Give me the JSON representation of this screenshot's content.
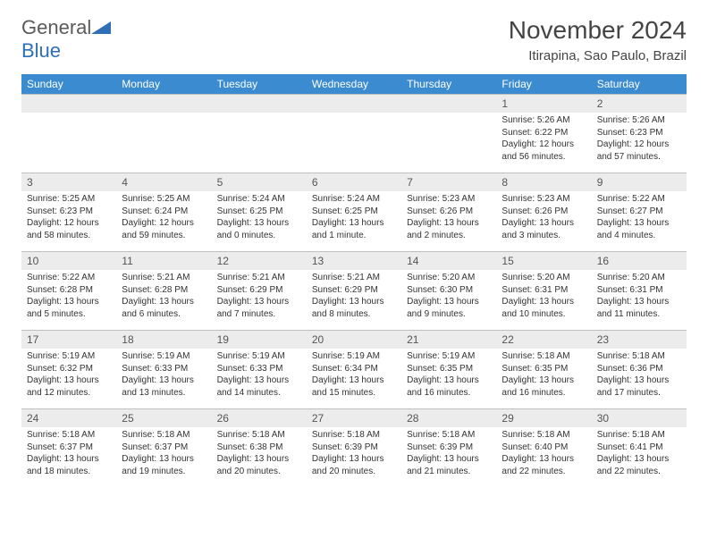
{
  "logo": {
    "text_gray": "General",
    "text_blue": "Blue",
    "shape_color": "#2e6fb5"
  },
  "title": "November 2024",
  "location": "Itirapina, Sao Paulo, Brazil",
  "colors": {
    "header_bg": "#3b8bd0",
    "header_text": "#ffffff",
    "daynum_bg": "#ececec",
    "daynum_border": "#bfbfbf",
    "body_text": "#333333"
  },
  "day_headers": [
    "Sunday",
    "Monday",
    "Tuesday",
    "Wednesday",
    "Thursday",
    "Friday",
    "Saturday"
  ],
  "weeks": [
    [
      {
        "n": "",
        "lines": []
      },
      {
        "n": "",
        "lines": []
      },
      {
        "n": "",
        "lines": []
      },
      {
        "n": "",
        "lines": []
      },
      {
        "n": "",
        "lines": []
      },
      {
        "n": "1",
        "lines": [
          "Sunrise: 5:26 AM",
          "Sunset: 6:22 PM",
          "Daylight: 12 hours and 56 minutes."
        ]
      },
      {
        "n": "2",
        "lines": [
          "Sunrise: 5:26 AM",
          "Sunset: 6:23 PM",
          "Daylight: 12 hours and 57 minutes."
        ]
      }
    ],
    [
      {
        "n": "3",
        "lines": [
          "Sunrise: 5:25 AM",
          "Sunset: 6:23 PM",
          "Daylight: 12 hours and 58 minutes."
        ]
      },
      {
        "n": "4",
        "lines": [
          "Sunrise: 5:25 AM",
          "Sunset: 6:24 PM",
          "Daylight: 12 hours and 59 minutes."
        ]
      },
      {
        "n": "5",
        "lines": [
          "Sunrise: 5:24 AM",
          "Sunset: 6:25 PM",
          "Daylight: 13 hours and 0 minutes."
        ]
      },
      {
        "n": "6",
        "lines": [
          "Sunrise: 5:24 AM",
          "Sunset: 6:25 PM",
          "Daylight: 13 hours and 1 minute."
        ]
      },
      {
        "n": "7",
        "lines": [
          "Sunrise: 5:23 AM",
          "Sunset: 6:26 PM",
          "Daylight: 13 hours and 2 minutes."
        ]
      },
      {
        "n": "8",
        "lines": [
          "Sunrise: 5:23 AM",
          "Sunset: 6:26 PM",
          "Daylight: 13 hours and 3 minutes."
        ]
      },
      {
        "n": "9",
        "lines": [
          "Sunrise: 5:22 AM",
          "Sunset: 6:27 PM",
          "Daylight: 13 hours and 4 minutes."
        ]
      }
    ],
    [
      {
        "n": "10",
        "lines": [
          "Sunrise: 5:22 AM",
          "Sunset: 6:28 PM",
          "Daylight: 13 hours and 5 minutes."
        ]
      },
      {
        "n": "11",
        "lines": [
          "Sunrise: 5:21 AM",
          "Sunset: 6:28 PM",
          "Daylight: 13 hours and 6 minutes."
        ]
      },
      {
        "n": "12",
        "lines": [
          "Sunrise: 5:21 AM",
          "Sunset: 6:29 PM",
          "Daylight: 13 hours and 7 minutes."
        ]
      },
      {
        "n": "13",
        "lines": [
          "Sunrise: 5:21 AM",
          "Sunset: 6:29 PM",
          "Daylight: 13 hours and 8 minutes."
        ]
      },
      {
        "n": "14",
        "lines": [
          "Sunrise: 5:20 AM",
          "Sunset: 6:30 PM",
          "Daylight: 13 hours and 9 minutes."
        ]
      },
      {
        "n": "15",
        "lines": [
          "Sunrise: 5:20 AM",
          "Sunset: 6:31 PM",
          "Daylight: 13 hours and 10 minutes."
        ]
      },
      {
        "n": "16",
        "lines": [
          "Sunrise: 5:20 AM",
          "Sunset: 6:31 PM",
          "Daylight: 13 hours and 11 minutes."
        ]
      }
    ],
    [
      {
        "n": "17",
        "lines": [
          "Sunrise: 5:19 AM",
          "Sunset: 6:32 PM",
          "Daylight: 13 hours and 12 minutes."
        ]
      },
      {
        "n": "18",
        "lines": [
          "Sunrise: 5:19 AM",
          "Sunset: 6:33 PM",
          "Daylight: 13 hours and 13 minutes."
        ]
      },
      {
        "n": "19",
        "lines": [
          "Sunrise: 5:19 AM",
          "Sunset: 6:33 PM",
          "Daylight: 13 hours and 14 minutes."
        ]
      },
      {
        "n": "20",
        "lines": [
          "Sunrise: 5:19 AM",
          "Sunset: 6:34 PM",
          "Daylight: 13 hours and 15 minutes."
        ]
      },
      {
        "n": "21",
        "lines": [
          "Sunrise: 5:19 AM",
          "Sunset: 6:35 PM",
          "Daylight: 13 hours and 16 minutes."
        ]
      },
      {
        "n": "22",
        "lines": [
          "Sunrise: 5:18 AM",
          "Sunset: 6:35 PM",
          "Daylight: 13 hours and 16 minutes."
        ]
      },
      {
        "n": "23",
        "lines": [
          "Sunrise: 5:18 AM",
          "Sunset: 6:36 PM",
          "Daylight: 13 hours and 17 minutes."
        ]
      }
    ],
    [
      {
        "n": "24",
        "lines": [
          "Sunrise: 5:18 AM",
          "Sunset: 6:37 PM",
          "Daylight: 13 hours and 18 minutes."
        ]
      },
      {
        "n": "25",
        "lines": [
          "Sunrise: 5:18 AM",
          "Sunset: 6:37 PM",
          "Daylight: 13 hours and 19 minutes."
        ]
      },
      {
        "n": "26",
        "lines": [
          "Sunrise: 5:18 AM",
          "Sunset: 6:38 PM",
          "Daylight: 13 hours and 20 minutes."
        ]
      },
      {
        "n": "27",
        "lines": [
          "Sunrise: 5:18 AM",
          "Sunset: 6:39 PM",
          "Daylight: 13 hours and 20 minutes."
        ]
      },
      {
        "n": "28",
        "lines": [
          "Sunrise: 5:18 AM",
          "Sunset: 6:39 PM",
          "Daylight: 13 hours and 21 minutes."
        ]
      },
      {
        "n": "29",
        "lines": [
          "Sunrise: 5:18 AM",
          "Sunset: 6:40 PM",
          "Daylight: 13 hours and 22 minutes."
        ]
      },
      {
        "n": "30",
        "lines": [
          "Sunrise: 5:18 AM",
          "Sunset: 6:41 PM",
          "Daylight: 13 hours and 22 minutes."
        ]
      }
    ]
  ]
}
